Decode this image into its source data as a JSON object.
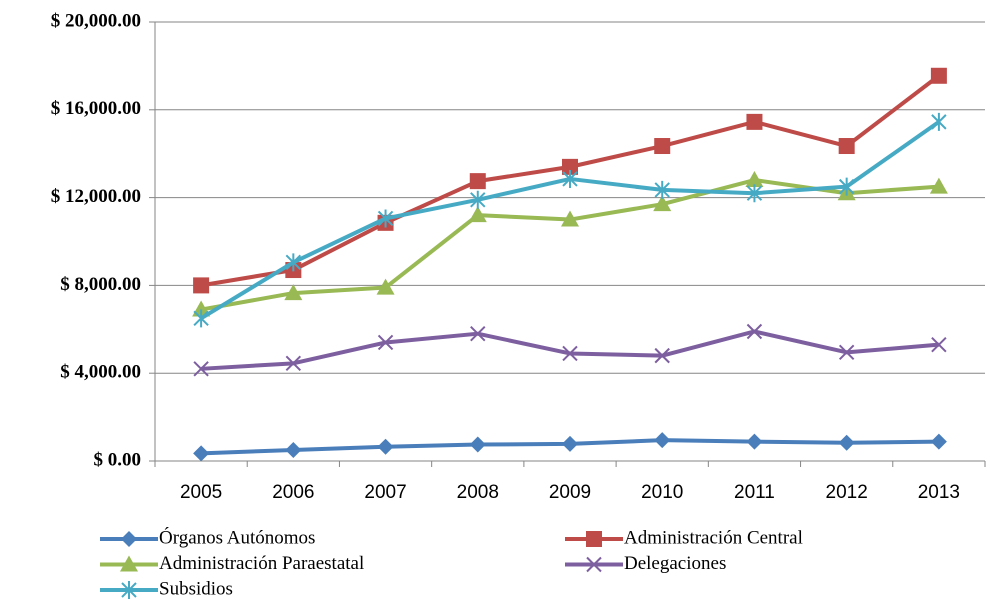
{
  "chart_data": {
    "type": "line",
    "categories": [
      "2005",
      "2006",
      "2007",
      "2008",
      "2009",
      "2010",
      "2011",
      "2012",
      "2013"
    ],
    "series": [
      {
        "name": "Órganos Autónomos",
        "color": "#4a7ebb",
        "marker": "diamond",
        "values": [
          350,
          500,
          650,
          750,
          780,
          950,
          880,
          830,
          880
        ]
      },
      {
        "name": "Administración Central",
        "color": "#be4b48",
        "marker": "square",
        "values": [
          8000,
          8700,
          10850,
          12750,
          13400,
          14350,
          15450,
          14350,
          17550
        ]
      },
      {
        "name": "Administración Paraestatal",
        "color": "#98b954",
        "marker": "triangle",
        "values": [
          6900,
          7650,
          7900,
          11200,
          11000,
          11700,
          12800,
          12200,
          12500
        ]
      },
      {
        "name": "Delegaciones",
        "color": "#7d5fa0",
        "marker": "x",
        "values": [
          4200,
          4450,
          5400,
          5800,
          4900,
          4800,
          5900,
          4950,
          5300
        ]
      },
      {
        "name": "Subsidios",
        "color": "#46aac5",
        "marker": "asterisk",
        "values": [
          6500,
          9050,
          11050,
          11900,
          12850,
          12350,
          12200,
          12500,
          15450
        ]
      }
    ],
    "ylim": [
      0,
      20000
    ],
    "yticks": [
      {
        "value": 0,
        "label": "$ 0.00"
      },
      {
        "value": 4000,
        "label": "$ 4,000.00"
      },
      {
        "value": 8000,
        "label": "$ 8,000.00"
      },
      {
        "value": 12000,
        "label": "$ 12,000.00"
      },
      {
        "value": 16000,
        "label": "$ 16,000.00"
      },
      {
        "value": 20000,
        "label": "$ 20,000.00"
      }
    ],
    "grid": true,
    "legend": "bottom"
  }
}
